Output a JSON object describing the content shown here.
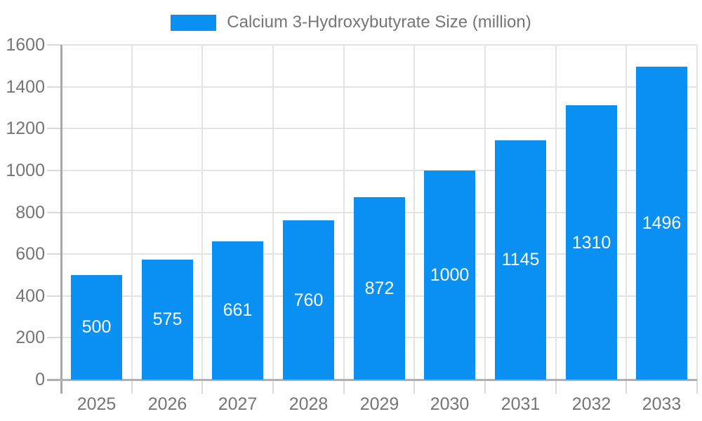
{
  "chart_data": {
    "type": "bar",
    "title": "Calcium 3-Hydroxybutyrate Size (million)",
    "categories": [
      "2025",
      "2026",
      "2027",
      "2028",
      "2029",
      "2030",
      "2031",
      "2032",
      "2033"
    ],
    "series": [
      {
        "name": "Calcium 3-Hydroxybutyrate Size (million)",
        "values": [
          500,
          575,
          661,
          760,
          872,
          1000,
          1145,
          1310,
          1496
        ]
      }
    ],
    "xlabel": "",
    "ylabel": "",
    "ylim": [
      0,
      1600
    ],
    "yticks": [
      0,
      200,
      400,
      600,
      800,
      1000,
      1200,
      1400,
      1600
    ],
    "grid": true,
    "legend_position": "top-center",
    "value_label_position": "inside-center",
    "colors": {
      "bar": "#0a8ff2",
      "value_label": "#ffffff",
      "axis_text": "#757575",
      "axis_line": "#a8a8a8",
      "gridline": "#e3e3e3",
      "tick": "#d9d9d9",
      "background": "#ffffff"
    }
  }
}
